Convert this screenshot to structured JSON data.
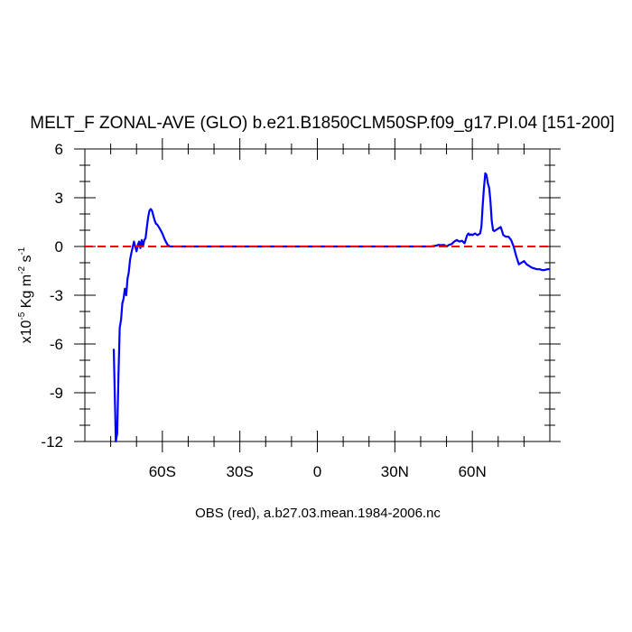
{
  "chart_data": {
    "type": "line",
    "title": "MELT_F ZONAL-AVE (GLO) b.e21.B1850CLM50SP.f09_g17.PI.04 [151-200]",
    "ylabel": {
      "prefix": "x10",
      "exp": "-5",
      "units_main": " Kg m",
      "units_exp": "-2",
      "units_s": " s",
      "units_s_exp": "-1"
    },
    "footer": "OBS (red), a.b27.03.mean.1984-2006.nc",
    "xlim": [
      -90,
      90
    ],
    "ylim": [
      -12,
      6
    ],
    "xticks": [
      {
        "value": -60,
        "label": "60S"
      },
      {
        "value": -30,
        "label": "30S"
      },
      {
        "value": 0,
        "label": "0"
      },
      {
        "value": 30,
        "label": "30N"
      },
      {
        "value": 60,
        "label": "60N"
      }
    ],
    "yticks": [
      {
        "value": 6,
        "label": "6"
      },
      {
        "value": 3,
        "label": "3"
      },
      {
        "value": 0,
        "label": "0"
      },
      {
        "value": -3,
        "label": "-3"
      },
      {
        "value": -6,
        "label": "-6"
      },
      {
        "value": -9,
        "label": "-9"
      },
      {
        "value": -12,
        "label": "-12"
      }
    ],
    "grid": false,
    "series": [
      {
        "color": "#0000ff",
        "style": "solid",
        "x": [
          -78.8,
          -78.0,
          -77.5,
          -77.0,
          -76.5,
          -76.0,
          -75.5,
          -75.0,
          -74.5,
          -74.0,
          -73.5,
          -73.0,
          -72.5,
          -72.0,
          -71.0,
          -70.5,
          -70.0,
          -69.5,
          -69.0,
          -68.5,
          -68.0,
          -67.5,
          -67.0,
          -66.5,
          -66.0,
          -65.5,
          -65.0,
          -64.5,
          -64.0,
          -63.5,
          -63.0,
          -62.5,
          -62.0,
          -61.0,
          -60.0,
          -59.0,
          -58.0,
          -57.0,
          -56.0,
          -55.0,
          -54.0,
          -50.0,
          -40.0,
          -30.0,
          -20.0,
          -10.0,
          0.0,
          10.0,
          20.0,
          30.0,
          40.0,
          44.0,
          46.0,
          47.0,
          48.0,
          49.0,
          50.0,
          51.0,
          52.0,
          53.0,
          54.0,
          55.0,
          56.0,
          57.0,
          58.0,
          58.5,
          59.0,
          59.5,
          60.0,
          61.0,
          62.0,
          63.0,
          63.5,
          64.0,
          64.5,
          65.0,
          65.5,
          66.0,
          66.5,
          67.0,
          67.5,
          68.0,
          68.5,
          69.0,
          70.0,
          71.0,
          72.0,
          73.0,
          74.0,
          75.0,
          76.0,
          77.0,
          78.0,
          79.0,
          80.0,
          81.0,
          82.0,
          83.0,
          84.0,
          85.0,
          86.0,
          87.0,
          88.0,
          89.0,
          90.0
        ],
        "y": [
          -6.3,
          -12.0,
          -11.5,
          -8.0,
          -5.0,
          -4.5,
          -3.5,
          -3.2,
          -2.6,
          -3.0,
          -2.0,
          -1.6,
          -0.8,
          -0.4,
          0.3,
          0.0,
          -0.3,
          0.1,
          0.3,
          -0.1,
          0.4,
          0.0,
          0.4,
          0.5,
          1.2,
          1.8,
          2.2,
          2.3,
          2.2,
          1.9,
          1.6,
          1.4,
          1.35,
          1.1,
          0.8,
          0.4,
          0.1,
          0.0,
          0.0,
          0.0,
          0.0,
          0.0,
          0.0,
          0.0,
          0.0,
          0.0,
          0.0,
          0.0,
          0.0,
          0.0,
          0.0,
          0.0,
          0.05,
          0.1,
          0.08,
          0.1,
          0.0,
          0.1,
          0.15,
          0.3,
          0.4,
          0.3,
          0.35,
          0.2,
          0.7,
          0.8,
          0.7,
          0.75,
          0.7,
          0.8,
          0.7,
          0.8,
          1.2,
          2.5,
          3.6,
          4.5,
          4.4,
          3.9,
          3.6,
          2.8,
          1.6,
          1.0,
          0.95,
          1.0,
          1.1,
          1.2,
          0.7,
          0.6,
          0.6,
          0.4,
          0.0,
          -0.6,
          -1.1,
          -1.0,
          -0.9,
          -1.1,
          -1.2,
          -1.3,
          -1.35,
          -1.4,
          -1.4,
          -1.45,
          -1.45,
          -1.4,
          -1.4
        ]
      },
      {
        "color": "#ff0000",
        "style": "dashed",
        "x": [
          -90,
          90
        ],
        "y": [
          0,
          0
        ]
      }
    ]
  }
}
